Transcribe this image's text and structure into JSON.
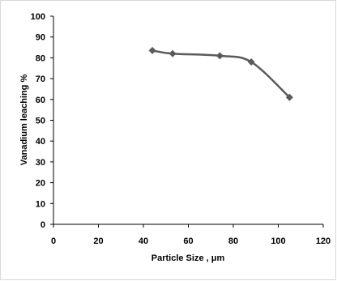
{
  "chart_data": {
    "type": "line",
    "title": "",
    "xlabel": "Particle Size , μm",
    "ylabel": "Vanadium leaching %",
    "xlim": [
      0,
      120
    ],
    "ylim": [
      0,
      100
    ],
    "xticks": [
      0,
      20,
      40,
      60,
      80,
      100,
      120
    ],
    "yticks": [
      0,
      10,
      20,
      30,
      40,
      50,
      60,
      70,
      80,
      90,
      100
    ],
    "grid": false,
    "legend": "none",
    "series": [
      {
        "x": [
          44,
          53,
          74,
          88,
          105
        ],
        "y": [
          83.5,
          82,
          81,
          78,
          61
        ],
        "marker": "diamond",
        "smooth": true
      }
    ],
    "colors": {
      "line": "#5a5a5a",
      "marker": "#5a5a5a",
      "axis": "#000000",
      "frame": "#d9d9d9"
    }
  }
}
